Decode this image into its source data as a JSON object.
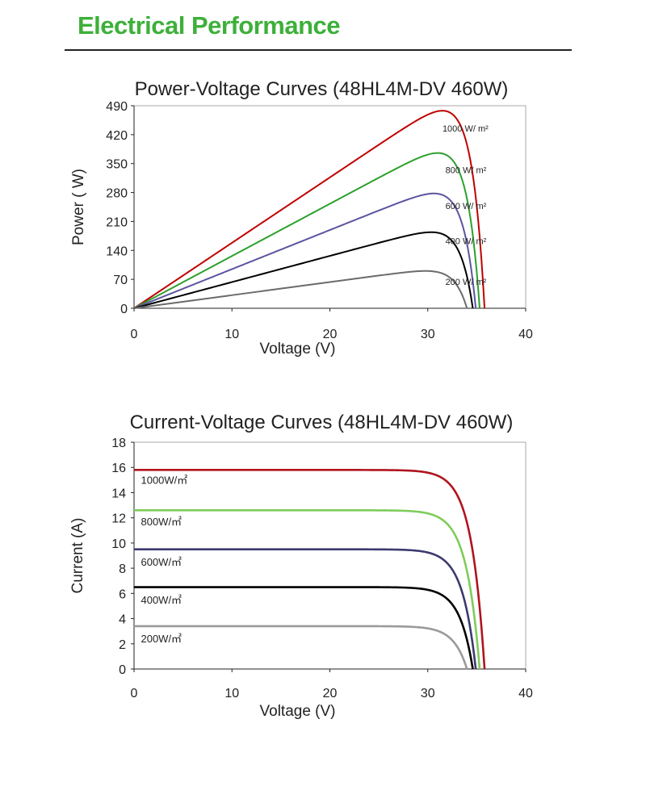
{
  "page": {
    "title": "Electrical Performance",
    "colors": {
      "title": "#3db03a",
      "rule": "#222222"
    }
  },
  "chart_data": [
    {
      "type": "line",
      "title": "Power-Voltage Curves (48HL4M-DV 460W)",
      "xlabel": "Voltage (V)",
      "ylabel": "Power ( W)",
      "xlim": [
        0,
        40
      ],
      "ylim": [
        0,
        490
      ],
      "x_ticks": [
        "0",
        "10",
        "20",
        "30",
        "40"
      ],
      "y_ticks": [
        "0",
        "70",
        "140",
        "210",
        "280",
        "350",
        "420",
        "490"
      ],
      "grid": false,
      "series": [
        {
          "name": "1000 W/ m²",
          "color": "#c00000",
          "voc": 35.8,
          "vmp": 29.3,
          "pmax": 460,
          "label_at": [
            31.5,
            428
          ]
        },
        {
          "name": "800 W/ m²",
          "color": "#2ca02c",
          "voc": 35.3,
          "vmp": 29.3,
          "pmax": 366,
          "label_at": [
            31.8,
            327
          ]
        },
        {
          "name": "600 W/ m²",
          "color": "#5a55a0",
          "voc": 34.9,
          "vmp": 29.3,
          "pmax": 273,
          "label_at": [
            31.8,
            240
          ]
        },
        {
          "name": "400 W/ m²",
          "color": "#000000",
          "voc": 34.6,
          "vmp": 29.3,
          "pmax": 182,
          "label_at": [
            31.8,
            155
          ]
        },
        {
          "name": "200 W/ m²",
          "color": "#6b6b6b",
          "voc": 34.0,
          "vmp": 29.3,
          "pmax": 90,
          "label_at": [
            31.8,
            57
          ]
        }
      ]
    },
    {
      "type": "line",
      "title": "Current-Voltage Curves (48HL4M-DV 460W)",
      "xlabel": "Voltage (V)",
      "ylabel": "Current (A)",
      "xlim": [
        0,
        40
      ],
      "ylim": [
        0,
        18
      ],
      "x_ticks": [
        "0",
        "10",
        "20",
        "30",
        "40"
      ],
      "y_ticks": [
        "0",
        "2",
        "4",
        "6",
        "8",
        "10",
        "12",
        "14",
        "16",
        "18"
      ],
      "grid": false,
      "series": [
        {
          "name": "1000W/㎡",
          "color": "#b0141e",
          "isc": 15.8,
          "voc": 35.8,
          "label_at": [
            0.7,
            14.7
          ]
        },
        {
          "name": "800W/㎡",
          "color": "#7fcc5a",
          "isc": 12.6,
          "voc": 35.3,
          "label_at": [
            0.7,
            11.4
          ]
        },
        {
          "name": "600W/㎡",
          "color": "#3c3a6e",
          "isc": 9.5,
          "voc": 34.9,
          "label_at": [
            0.7,
            8.2
          ]
        },
        {
          "name": "400W/㎡",
          "color": "#000000",
          "isc": 6.5,
          "voc": 34.6,
          "label_at": [
            0.7,
            5.2
          ]
        },
        {
          "name": "200W/㎡",
          "color": "#9a9a9a",
          "isc": 3.4,
          "voc": 34.0,
          "label_at": [
            0.7,
            2.1
          ]
        }
      ]
    }
  ]
}
